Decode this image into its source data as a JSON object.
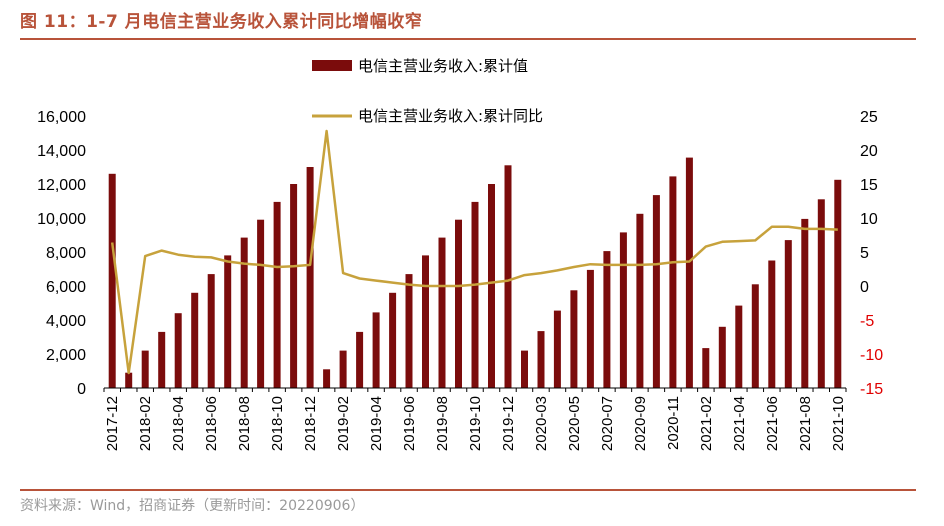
{
  "title": "图 11：1-7 月电信主营业务收入累计同比增幅收窄",
  "source": "资料来源：Wind，招商证券（更新时间：20220906）",
  "colors": {
    "bar": "#7b0c0c",
    "line": "#c7a23c",
    "accent": "#b8533a",
    "negative_tick": "#e00000"
  },
  "chart_data": {
    "type": "bar",
    "categories": [
      "2017-12",
      "2018-01",
      "2018-02",
      "2018-03",
      "2018-04",
      "2018-05",
      "2018-06",
      "2018-07",
      "2018-08",
      "2018-09",
      "2018-10",
      "2018-11",
      "2018-12",
      "2019-01",
      "2019-02",
      "2019-03",
      "2019-04",
      "2019-05",
      "2019-06",
      "2019-07",
      "2019-08",
      "2019-09",
      "2019-10",
      "2019-11",
      "2019-12",
      "2020-02",
      "2020-03",
      "2020-04",
      "2020-05",
      "2020-06",
      "2020-07",
      "2020-08",
      "2020-09",
      "2020-10",
      "2020-11",
      "2020-12",
      "2021-02",
      "2021-03",
      "2021-04",
      "2021-05",
      "2021-06",
      "2021-07",
      "2021-08",
      "2021-09",
      "2021-10"
    ],
    "x_tick_labels": [
      "2017-12",
      "2018-02",
      "2018-04",
      "2018-06",
      "2018-08",
      "2018-10",
      "2018-12",
      "2019-02",
      "2019-04",
      "2019-06",
      "2019-08",
      "2019-10",
      "2019-12",
      "2020-03",
      "2020-05",
      "2020-07",
      "2020-09",
      "2020-11",
      "2021-02",
      "2021-04",
      "2021-06",
      "2021-08",
      "2021-10"
    ],
    "x_tick_indices": [
      0,
      2,
      4,
      6,
      8,
      10,
      12,
      14,
      16,
      18,
      20,
      22,
      24,
      26,
      28,
      30,
      32,
      34,
      36,
      38,
      40,
      42,
      44
    ],
    "series": [
      {
        "name": "电信主营业务收入:累计值",
        "type": "bar",
        "axis": "left",
        "values": [
          12600,
          900,
          2200,
          3300,
          4400,
          5600,
          6700,
          7800,
          8850,
          9900,
          10950,
          12000,
          13000,
          1100,
          2200,
          3300,
          4450,
          5600,
          6700,
          7800,
          8850,
          9900,
          10950,
          12000,
          13100,
          2200,
          3350,
          4550,
          5750,
          6950,
          8050,
          9150,
          10250,
          11350,
          12450,
          13550,
          2350,
          3600,
          4850,
          6100,
          7500,
          8700,
          9950,
          11100,
          12250
        ]
      },
      {
        "name": "电信主营业务收入:累计同比",
        "type": "line",
        "axis": "right",
        "values": [
          6.4,
          -12.8,
          4.4,
          5.2,
          4.6,
          4.3,
          4.2,
          3.6,
          3.3,
          3.1,
          2.8,
          2.9,
          3.1,
          22.8,
          1.9,
          1.1,
          0.8,
          0.5,
          0.2,
          0.0,
          0.0,
          0.0,
          0.2,
          0.5,
          0.8,
          1.6,
          1.9,
          2.3,
          2.8,
          3.2,
          3.1,
          3.1,
          3.1,
          3.2,
          3.5,
          3.6,
          5.8,
          6.5,
          6.6,
          6.7,
          8.7,
          8.7,
          8.4,
          8.4,
          8.3
        ]
      }
    ],
    "y_left": {
      "ylim": [
        0,
        16000
      ],
      "ticks": [
        "0",
        "2,000",
        "4,000",
        "6,000",
        "8,000",
        "10,000",
        "12,000",
        "14,000",
        "16,000"
      ],
      "tick_values": [
        0,
        2000,
        4000,
        6000,
        8000,
        10000,
        12000,
        14000,
        16000
      ]
    },
    "y_right": {
      "ylim": [
        -15,
        25
      ],
      "ticks": [
        "-15",
        "-10",
        "-5",
        "0",
        "5",
        "10",
        "15",
        "20",
        "25"
      ],
      "tick_values": [
        -15,
        -10,
        -5,
        0,
        5,
        10,
        15,
        20,
        25
      ]
    },
    "legend": [
      "电信主营业务收入:累计值",
      "电信主营业务收入:累计同比"
    ],
    "legend_position": "top-center",
    "grid": false
  }
}
